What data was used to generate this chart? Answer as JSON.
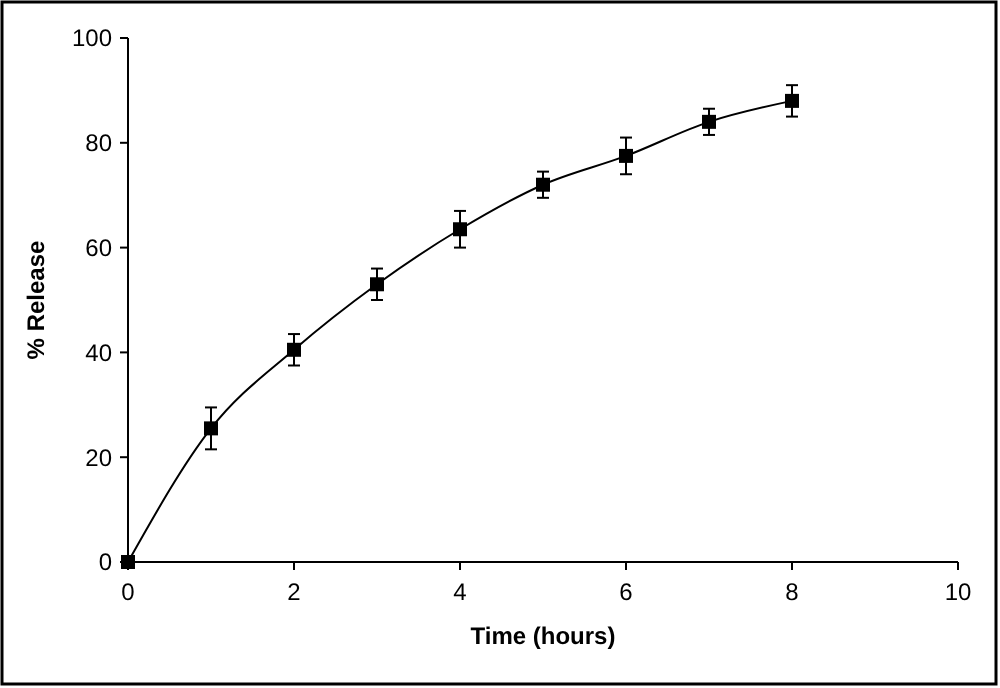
{
  "chart_data": {
    "type": "line",
    "xlabel": "Time (hours)",
    "ylabel": "% Release",
    "x": [
      0,
      1,
      2,
      3,
      4,
      5,
      6,
      7,
      8
    ],
    "series": [
      {
        "color": "#000000",
        "values": [
          0,
          25.5,
          40.5,
          53,
          63.5,
          72,
          77.5,
          84,
          88
        ],
        "errors": [
          null,
          4,
          3,
          3,
          3.5,
          2.5,
          3.5,
          2.5,
          3
        ]
      }
    ],
    "xlim": [
      0,
      10
    ],
    "xticks": [
      0,
      2,
      4,
      6,
      8,
      10
    ],
    "ylim": [
      0,
      100
    ],
    "yticks": [
      0,
      20,
      40,
      60,
      80,
      100
    ],
    "grid": false,
    "marker": "square",
    "line_style": "solid"
  }
}
